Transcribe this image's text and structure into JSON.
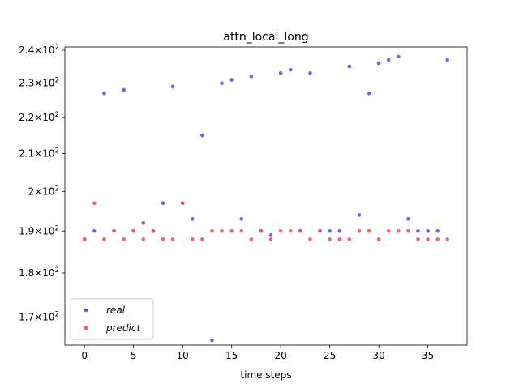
{
  "chart_data": {
    "type": "scatter",
    "title": "attn_local_long",
    "xlabel": "time steps",
    "ylabel": "",
    "xlim": [
      -2,
      39
    ],
    "ylim": [
      164,
      241
    ],
    "yscale": "log",
    "x_ticks": [
      0,
      5,
      10,
      15,
      20,
      25,
      30,
      35
    ],
    "y_ticks": [
      {
        "value": 170,
        "mant": "1.7",
        "exp": "2"
      },
      {
        "value": 180,
        "mant": "1.8",
        "exp": "2"
      },
      {
        "value": 190,
        "mant": "1.9",
        "exp": "2"
      },
      {
        "value": 200,
        "mant": "2",
        "exp": "2"
      },
      {
        "value": 210,
        "mant": "2.1",
        "exp": "2"
      },
      {
        "value": 220,
        "mant": "2.2",
        "exp": "2"
      },
      {
        "value": 230,
        "mant": "2.3",
        "exp": "2"
      },
      {
        "value": 240,
        "mant": "2.4",
        "exp": "2"
      }
    ],
    "grid": false,
    "legend_position": "lower-left",
    "x": [
      0,
      1,
      2,
      3,
      4,
      5,
      6,
      7,
      8,
      9,
      10,
      11,
      12,
      13,
      14,
      15,
      16,
      17,
      18,
      19,
      20,
      21,
      22,
      23,
      24,
      25,
      26,
      27,
      28,
      29,
      30,
      31,
      32,
      33,
      34,
      35,
      36,
      37
    ],
    "series": [
      {
        "name": "real",
        "color": "#5555ee",
        "values": [
          188,
          190,
          227,
          190,
          228,
          190,
          192,
          190,
          197,
          229,
          197,
          193,
          215,
          165,
          230,
          231,
          193,
          232,
          190,
          189,
          233,
          234,
          190,
          233,
          190,
          190,
          190,
          235,
          194,
          227,
          236,
          237,
          238,
          193,
          190,
          190,
          190,
          237
        ]
      },
      {
        "name": "predict",
        "color": "#ee5555",
        "values": [
          188,
          197,
          188,
          190,
          188,
          190,
          188,
          190,
          188,
          188,
          197,
          188,
          188,
          190,
          190,
          190,
          190,
          188,
          190,
          188,
          190,
          190,
          190,
          188,
          190,
          188,
          188,
          188,
          190,
          190,
          188,
          190,
          190,
          190,
          188,
          188,
          188,
          188
        ]
      }
    ]
  }
}
